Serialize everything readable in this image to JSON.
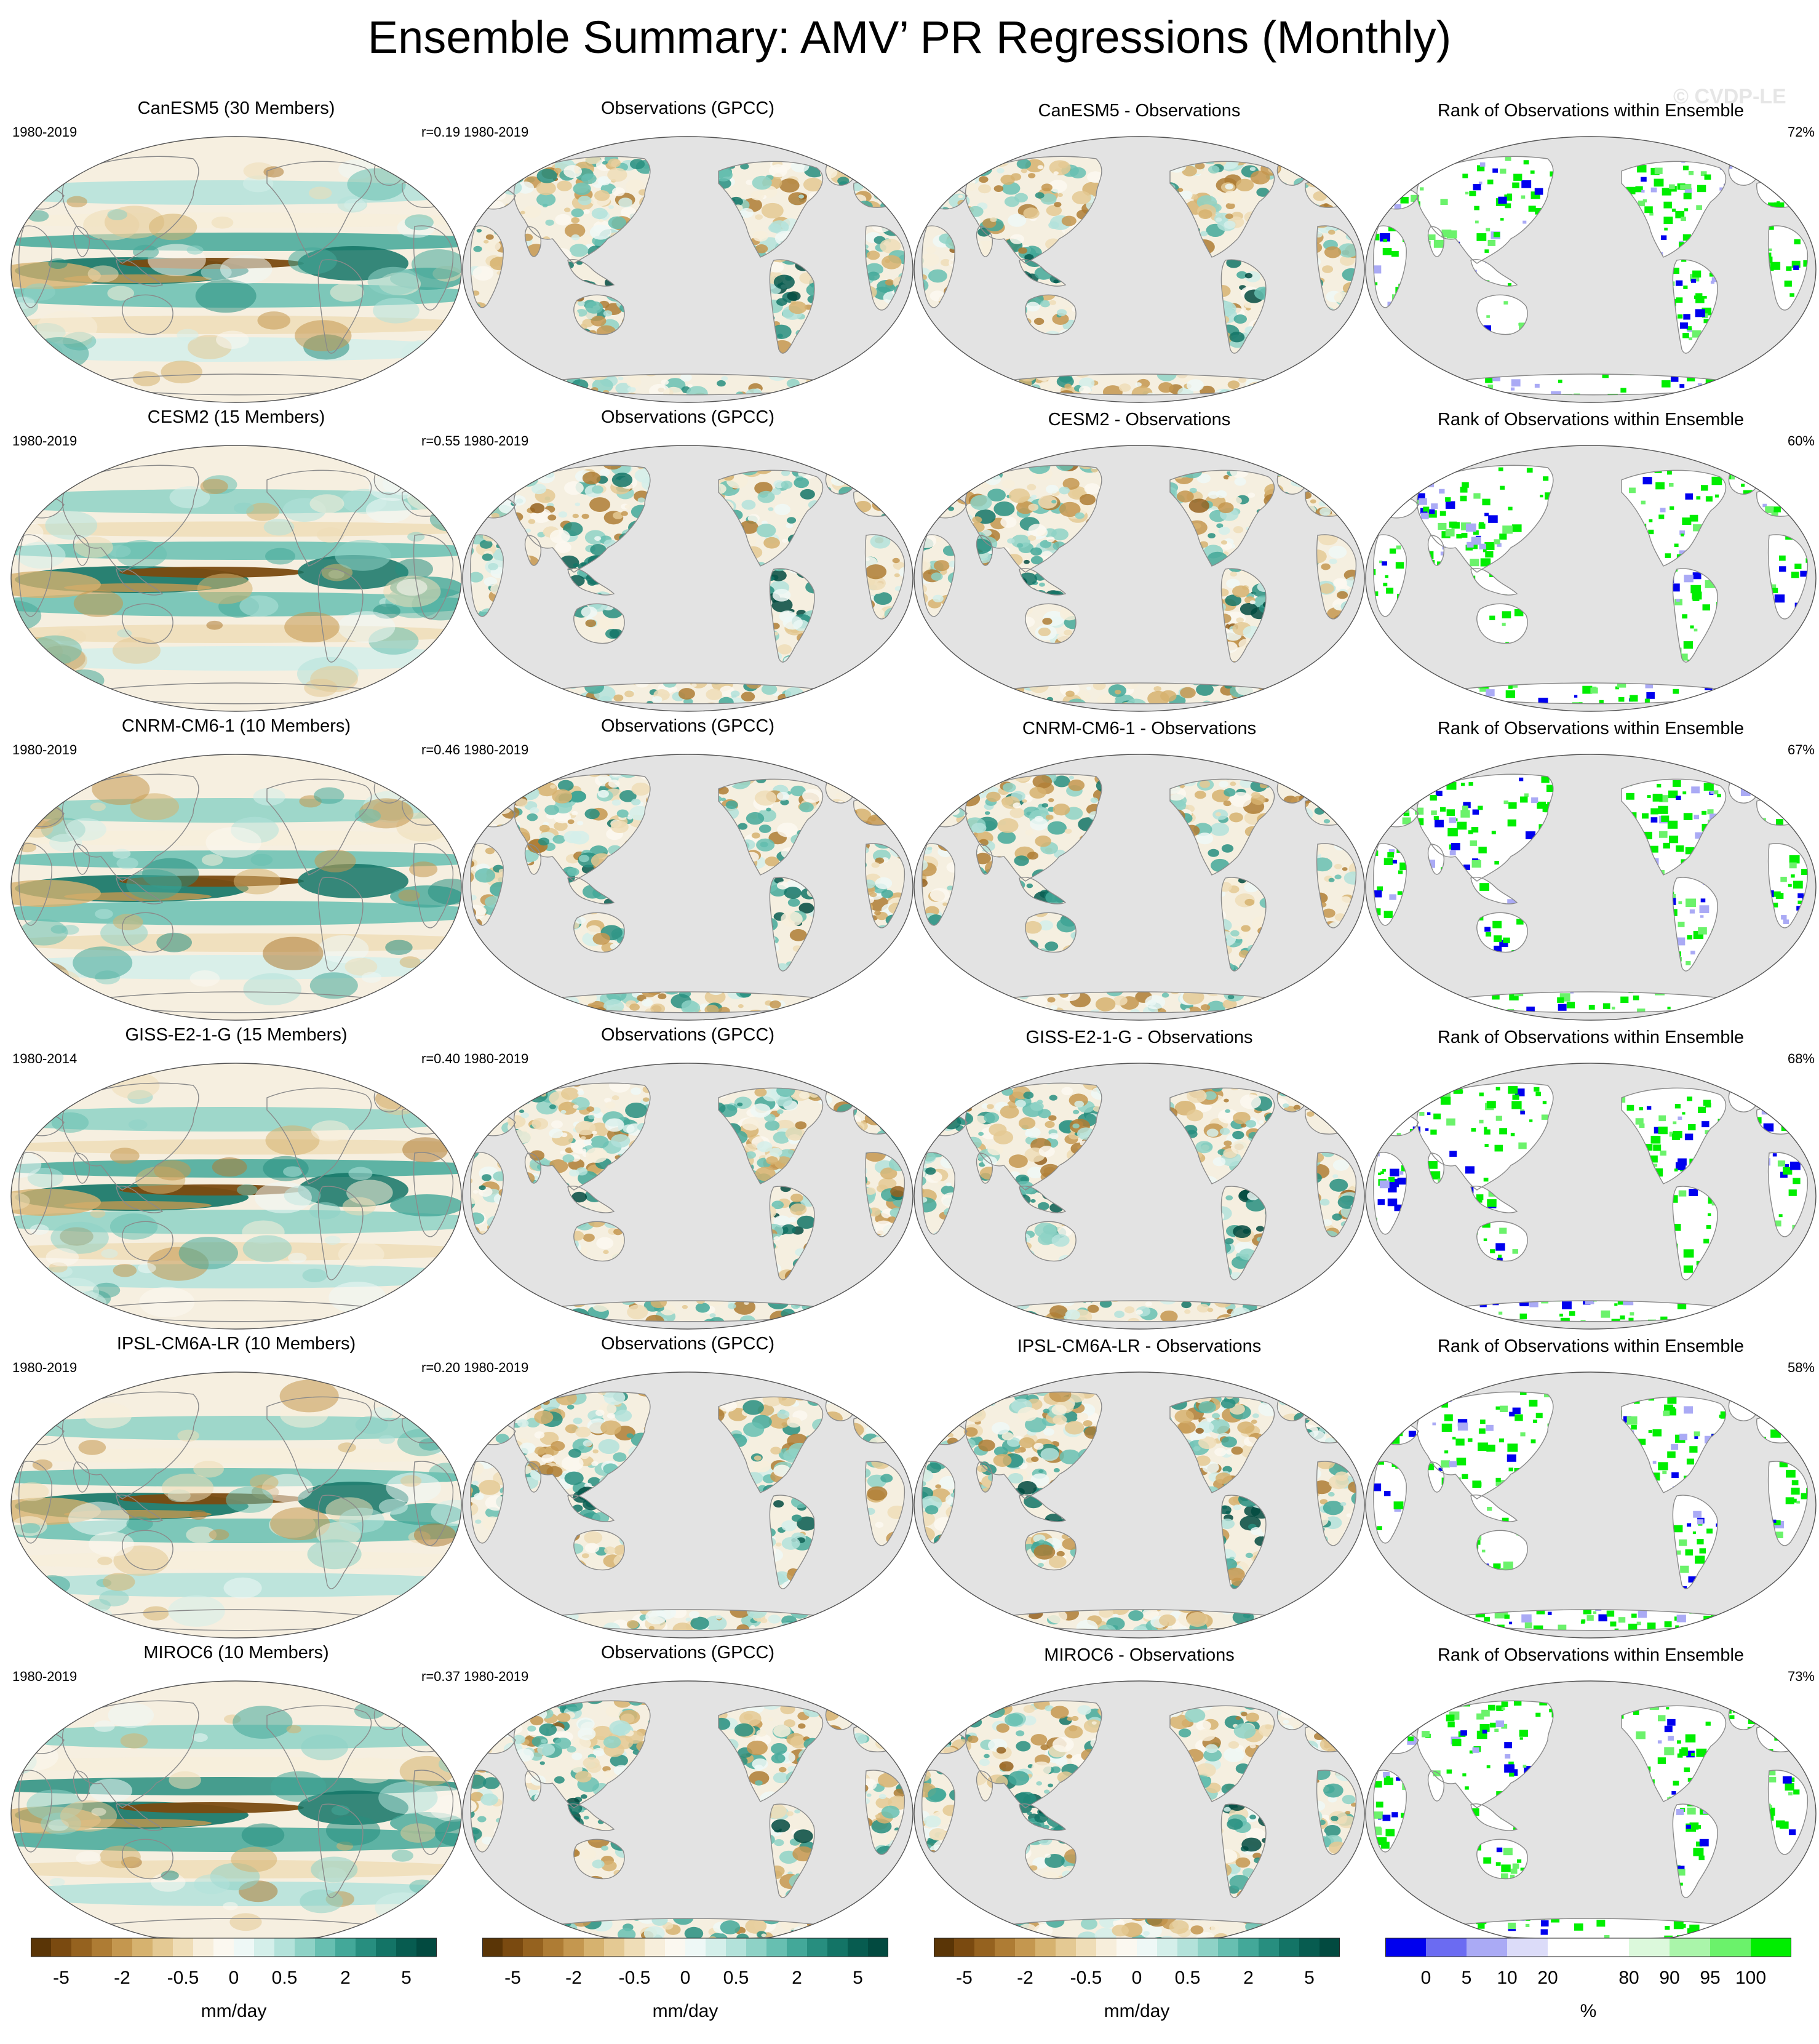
{
  "title": "Ensemble Summary: AMV’ PR Regressions (Monthly)",
  "watermark": "© CVDP-LE",
  "colors": {
    "ocean_gray": "#e3e3e3",
    "coast": "#8a8a8a",
    "brown_dark": "#7a4a10",
    "tan": "#d9b36f",
    "light": "#f3ecd8",
    "teal_light": "#9ed8cf",
    "teal_dark": "#0b5a50",
    "rank_blue": "#0000ee",
    "rank_green": "#00ee00"
  },
  "rows": [
    {
      "model_title": "CanESM5 (30 Members)",
      "model_period": "1980-2019",
      "model_r": "r=0.19",
      "obs_title": "Observations (GPCC)",
      "obs_period": "1980-2019",
      "diff_title": "CanESM5 - Observations",
      "rank_title": "Rank of Observations within Ensemble",
      "rank_pct": "72%"
    },
    {
      "model_title": "CESM2 (15 Members)",
      "model_period": "1980-2019",
      "model_r": "r=0.55",
      "obs_title": "Observations (GPCC)",
      "obs_period": "1980-2019",
      "diff_title": "CESM2 - Observations",
      "rank_title": "Rank of Observations within Ensemble",
      "rank_pct": "60%"
    },
    {
      "model_title": "CNRM-CM6-1 (10 Members)",
      "model_period": "1980-2019",
      "model_r": "r=0.46",
      "obs_title": "Observations (GPCC)",
      "obs_period": "1980-2019",
      "diff_title": "CNRM-CM6-1 - Observations",
      "rank_title": "Rank of Observations within Ensemble",
      "rank_pct": "67%"
    },
    {
      "model_title": "GISS-E2-1-G (15 Members)",
      "model_period": "1980-2014",
      "model_r": "r=0.40",
      "obs_title": "Observations (GPCC)",
      "obs_period": "1980-2019",
      "diff_title": "GISS-E2-1-G - Observations",
      "rank_title": "Rank of Observations within Ensemble",
      "rank_pct": "68%"
    },
    {
      "model_title": "IPSL-CM6A-LR (10 Members)",
      "model_period": "1980-2019",
      "model_r": "r=0.20",
      "obs_title": "Observations (GPCC)",
      "obs_period": "1980-2019",
      "diff_title": "IPSL-CM6A-LR - Observations",
      "rank_title": "Rank of Observations within Ensemble",
      "rank_pct": "58%"
    },
    {
      "model_title": "MIROC6 (10 Members)",
      "model_period": "1980-2019",
      "model_r": "r=0.37",
      "obs_title": "Observations (GPCC)",
      "obs_period": "1980-2019",
      "diff_title": "MIROC6 - Observations",
      "rank_title": "Rank of Observations within Ensemble",
      "rank_pct": "73%"
    }
  ],
  "colorbars": [
    {
      "unit": "mm/day",
      "colors": [
        "#5a3506",
        "#7a4a10",
        "#95621f",
        "#ae7c34",
        "#c4974f",
        "#d6b26f",
        "#e4c993",
        "#efddb7",
        "#f7eedb",
        "#fbf8f0",
        "#eef8f6",
        "#d4efea",
        "#b3e2da",
        "#8ed2c6",
        "#67bfb1",
        "#43a899",
        "#278e7f",
        "#137466",
        "#075c50",
        "#024a40"
      ],
      "ticks": [
        "-5",
        "-2",
        "-0.5",
        "0",
        "0.5",
        "2",
        "5"
      ]
    },
    {
      "unit": "mm/day",
      "colors": [
        "#5a3506",
        "#7a4a10",
        "#95621f",
        "#ae7c34",
        "#c4974f",
        "#d6b26f",
        "#e4c993",
        "#efddb7",
        "#f7eedb",
        "#fbf8f0",
        "#eef8f6",
        "#d4efea",
        "#b3e2da",
        "#8ed2c6",
        "#67bfb1",
        "#43a899",
        "#278e7f",
        "#137466",
        "#075c50",
        "#024a40"
      ],
      "ticks": [
        "-5",
        "-2",
        "-0.5",
        "0",
        "0.5",
        "2",
        "5"
      ]
    },
    {
      "unit": "mm/day",
      "colors": [
        "#5a3506",
        "#7a4a10",
        "#95621f",
        "#ae7c34",
        "#c4974f",
        "#d6b26f",
        "#e4c993",
        "#efddb7",
        "#f7eedb",
        "#fbf8f0",
        "#eef8f6",
        "#d4efea",
        "#b3e2da",
        "#8ed2c6",
        "#67bfb1",
        "#43a899",
        "#278e7f",
        "#137466",
        "#075c50",
        "#024a40"
      ],
      "ticks": [
        "-5",
        "-2",
        "-0.5",
        "0",
        "0.5",
        "2",
        "5"
      ]
    },
    {
      "unit": "%",
      "colors": [
        "#0000ee",
        "#6b6bf2",
        "#aaaaf5",
        "#dcdcf9",
        "#ffffff",
        "#ffffff",
        "#dcf9dc",
        "#aaf5aa",
        "#6bf26b",
        "#00ee00"
      ],
      "ticks": [
        "0",
        "5",
        "10",
        "20",
        "80",
        "90",
        "95",
        "100"
      ]
    }
  ]
}
